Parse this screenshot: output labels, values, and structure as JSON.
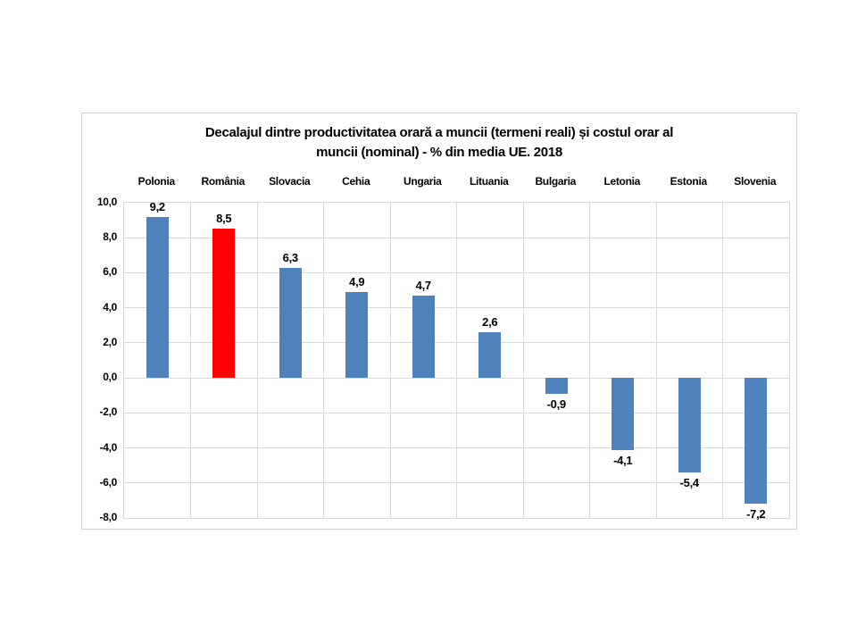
{
  "chart_data": {
    "type": "bar",
    "title": "Decalajul dintre productivitatea orară a muncii (termeni reali) și costul orar al muncii (nominal) - % din media UE. 2018",
    "title_lines": [
      "Decalajul dintre productivitatea orară a muncii (termeni reali) și costul orar al",
      "muncii (nominal) - % din media UE. 2018"
    ],
    "categories": [
      "Polonia",
      "România",
      "Slovacia",
      "Cehia",
      "Ungaria",
      "Lituania",
      "Bulgaria",
      "Letonia",
      "Estonia",
      "Slovenia"
    ],
    "values": [
      9.2,
      8.5,
      6.3,
      4.9,
      4.7,
      2.6,
      -0.9,
      -4.1,
      -5.4,
      -7.2
    ],
    "value_labels": [
      "9,2",
      "8,5",
      "6,3",
      "4,9",
      "4,7",
      "2,6",
      "-0,9",
      "-4,1",
      "-5,4",
      "-7,2"
    ],
    "xlabel": "",
    "ylabel": "",
    "ylim": [
      -8,
      10
    ],
    "ytick_step": 2,
    "ytick_values": [
      10,
      8,
      6,
      4,
      2,
      0,
      -2,
      -4,
      -6,
      -8
    ],
    "ytick_labels": [
      "10,0",
      "8,0",
      "6,0",
      "4,0",
      "2,0",
      "0,0",
      "-2,0",
      "-4,0",
      "-6,0",
      "-8,0"
    ],
    "grid": true,
    "legend_position": "none",
    "bar_color": "#4f81bd",
    "highlight_color": "#ff0000",
    "highlight_index": 1,
    "gridline_color": "#d9d9d9",
    "text_color": "#000000",
    "background_color": "#ffffff"
  }
}
